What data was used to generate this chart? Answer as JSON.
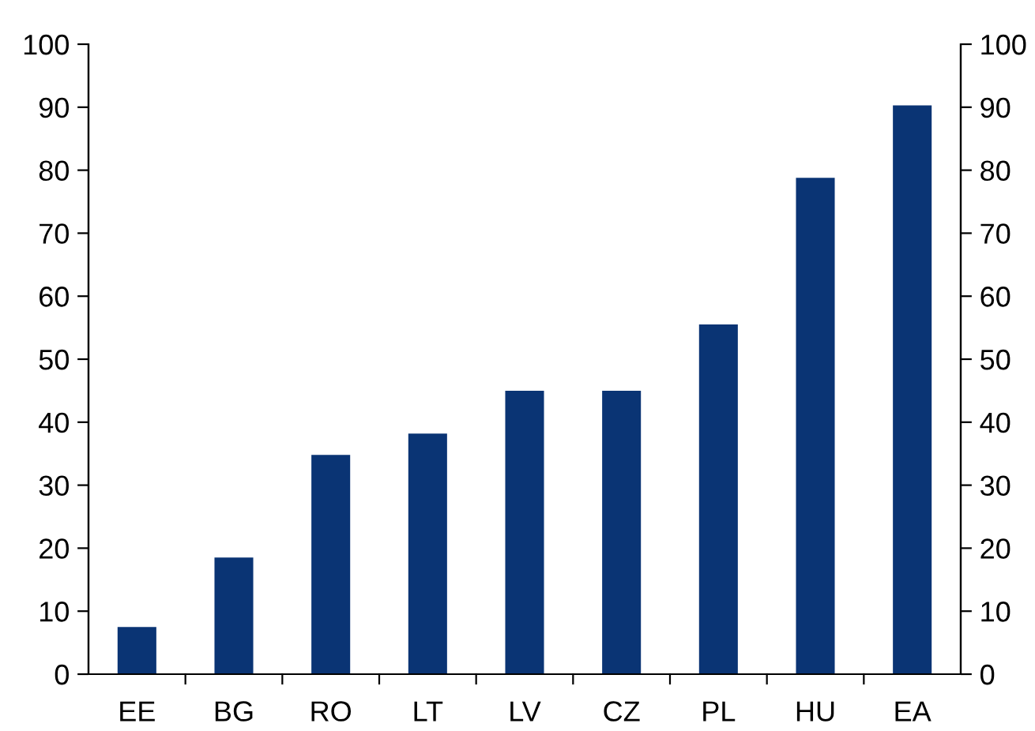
{
  "chart_data": {
    "type": "bar",
    "categories": [
      "EE",
      "BG",
      "RO",
      "LT",
      "LV",
      "CZ",
      "PL",
      "HU",
      "EA"
    ],
    "values": [
      7.5,
      18.5,
      34.8,
      38.2,
      45,
      45,
      55.5,
      78.8,
      90.3
    ],
    "color": "#0a3474",
    "ylim": [
      0,
      100
    ],
    "yticks": [
      0,
      10,
      20,
      30,
      40,
      50,
      60,
      70,
      80,
      90,
      100
    ],
    "y2lim": [
      0,
      100
    ],
    "y2ticks": [
      0,
      10,
      20,
      30,
      40,
      50,
      60,
      70,
      80,
      90,
      100
    ],
    "grid": false,
    "legend": false
  }
}
